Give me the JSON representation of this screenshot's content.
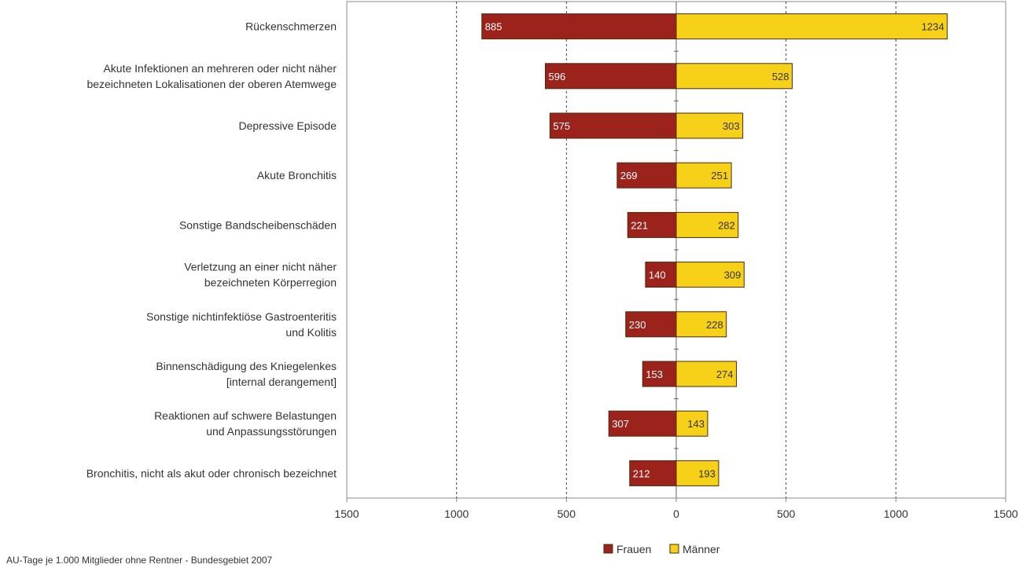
{
  "chart_data": {
    "type": "bar",
    "orientation": "horizontal",
    "layout": "diverging",
    "categories": [
      [
        "Rückenschmerzen"
      ],
      [
        "Akute Infektionen an mehreren oder nicht näher",
        "bezeichneten Lokalisationen der oberen Atemwege"
      ],
      [
        "Depressive Episode"
      ],
      [
        "Akute Bronchitis"
      ],
      [
        "Sonstige Bandscheibenschäden"
      ],
      [
        "Verletzung an einer nicht näher",
        "bezeichneten Körperregion"
      ],
      [
        "Sonstige nichtinfektiöse Gastroenteritis",
        "und Kolitis"
      ],
      [
        "Binnenschädigung des Kniegelenkes",
        "[internal derangement]"
      ],
      [
        "Reaktionen auf schwere Belastungen",
        "und Anpassungsstörungen"
      ],
      [
        "Bronchitis, nicht als akut oder chronisch bezeichnet"
      ]
    ],
    "series": [
      {
        "name": "Frauen",
        "direction": "left",
        "color": "#9b231c",
        "label_color": "#ffffff",
        "values": [
          885,
          596,
          575,
          269,
          221,
          140,
          230,
          153,
          307,
          212
        ]
      },
      {
        "name": "Männer",
        "direction": "right",
        "color": "#f7d117",
        "label_color": "#333333",
        "values": [
          1234,
          528,
          303,
          251,
          282,
          309,
          228,
          274,
          143,
          193
        ]
      }
    ],
    "xlim": [
      -1500,
      1500
    ],
    "xticks": [
      -1500,
      -1000,
      -500,
      0,
      500,
      1000,
      1500
    ],
    "xtick_labels": [
      "1500",
      "1000",
      "500",
      "0",
      "500",
      "1000",
      "1500"
    ],
    "grid": "vertical-dashed",
    "legend": "bottom-center",
    "footnote": "AU-Tage je 1.000 Mitglieder ohne Rentner - Bundesgebiet 2007"
  }
}
